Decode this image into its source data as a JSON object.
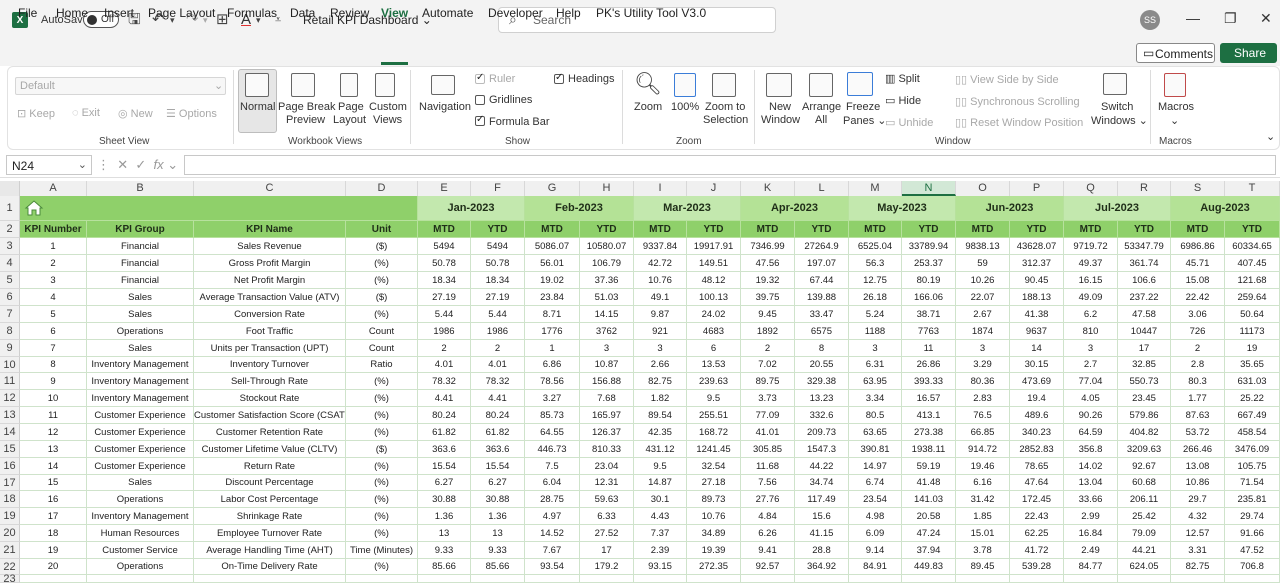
{
  "app": {
    "autosave_label": "AutoSave",
    "autosave_state": "Off",
    "doc_title": "Retail KPI Dashboard",
    "search_placeholder": "Search",
    "user_initials": "SS",
    "accent_color": "#1d6f42"
  },
  "menu": {
    "items": [
      "File",
      "Home",
      "Insert",
      "Page Layout",
      "Formulas",
      "Data",
      "Review",
      "View",
      "Automate",
      "Developer",
      "Help",
      "PK's Utility Tool V3.0"
    ],
    "active": "View",
    "comments_label": "Comments",
    "share_label": "Share"
  },
  "ribbon": {
    "sheet_view": {
      "select_value": "Default",
      "keep": "Keep",
      "exit": "Exit",
      "new": "New",
      "options": "Options",
      "label": "Sheet View"
    },
    "workbook_views": {
      "normal": "Normal",
      "page_break_1": "Page Break",
      "page_break_2": "Preview",
      "page_layout_1": "Page",
      "page_layout_2": "Layout",
      "custom_1": "Custom",
      "custom_2": "Views",
      "label": "Workbook Views"
    },
    "show": {
      "navigation": "Navigation",
      "ruler": "Ruler",
      "gridlines": "Gridlines",
      "formula_bar": "Formula Bar",
      "headings": "Headings",
      "label": "Show"
    },
    "zoom": {
      "zoom": "Zoom",
      "hundred": "100%",
      "zoom_sel_1": "Zoom to",
      "zoom_sel_2": "Selection",
      "label": "Zoom"
    },
    "window": {
      "new_1": "New",
      "new_2": "Window",
      "arrange_1": "Arrange",
      "arrange_2": "All",
      "freeze_1": "Freeze",
      "freeze_2": "Panes",
      "split": "Split",
      "hide": "Hide",
      "unhide": "Unhide",
      "side_by_side": "View Side by Side",
      "sync_scroll": "Synchronous Scrolling",
      "reset_pos": "Reset Window Position",
      "switch_1": "Switch",
      "switch_2": "Windows",
      "label": "Window"
    },
    "macros": {
      "macros": "Macros",
      "label": "Macros"
    }
  },
  "formula_bar": {
    "name_box": "N24",
    "fx": "fx",
    "value": ""
  },
  "sheet": {
    "columns": [
      "A",
      "B",
      "C",
      "D",
      "E",
      "F",
      "G",
      "H",
      "I",
      "J",
      "K",
      "L",
      "M",
      "N",
      "O",
      "P",
      "Q",
      "R",
      "S",
      "T"
    ],
    "selected_column": "N",
    "row_numbers": [
      "1",
      "2",
      "3",
      "4",
      "5",
      "6",
      "7",
      "8",
      "9",
      "10",
      "11",
      "12",
      "13",
      "14",
      "15",
      "16",
      "17",
      "18",
      "19",
      "20",
      "21",
      "22",
      "23"
    ],
    "months": [
      "Jan-2023",
      "Feb-2023",
      "Mar-2023",
      "Apr-2023",
      "May-2023",
      "Jun-2023",
      "Jul-2023",
      "Aug-2023"
    ],
    "sub_headers": [
      "MTD",
      "YTD"
    ],
    "headers": [
      "KPI Number",
      "KPI Group",
      "KPI Name",
      "Unit"
    ],
    "rows": [
      [
        "1",
        "Financial",
        "Sales Revenue",
        "($)",
        "5494",
        "5494",
        "5086.07",
        "10580.07",
        "9337.84",
        "19917.91",
        "7346.99",
        "27264.9",
        "6525.04",
        "33789.94",
        "9838.13",
        "43628.07",
        "9719.72",
        "53347.79",
        "6986.86",
        "60334.65"
      ],
      [
        "2",
        "Financial",
        "Gross Profit Margin",
        "(%)",
        "50.78",
        "50.78",
        "56.01",
        "106.79",
        "42.72",
        "149.51",
        "47.56",
        "197.07",
        "56.3",
        "253.37",
        "59",
        "312.37",
        "49.37",
        "361.74",
        "45.71",
        "407.45"
      ],
      [
        "3",
        "Financial",
        "Net Profit Margin",
        "(%)",
        "18.34",
        "18.34",
        "19.02",
        "37.36",
        "10.76",
        "48.12",
        "19.32",
        "67.44",
        "12.75",
        "80.19",
        "10.26",
        "90.45",
        "16.15",
        "106.6",
        "15.08",
        "121.68"
      ],
      [
        "4",
        "Sales",
        "Average Transaction Value (ATV)",
        "($)",
        "27.19",
        "27.19",
        "23.84",
        "51.03",
        "49.1",
        "100.13",
        "39.75",
        "139.88",
        "26.18",
        "166.06",
        "22.07",
        "188.13",
        "49.09",
        "237.22",
        "22.42",
        "259.64"
      ],
      [
        "5",
        "Sales",
        "Conversion Rate",
        "(%)",
        "5.44",
        "5.44",
        "8.71",
        "14.15",
        "9.87",
        "24.02",
        "9.45",
        "33.47",
        "5.24",
        "38.71",
        "2.67",
        "41.38",
        "6.2",
        "47.58",
        "3.06",
        "50.64"
      ],
      [
        "6",
        "Operations",
        "Foot Traffic",
        "Count",
        "1986",
        "1986",
        "1776",
        "3762",
        "921",
        "4683",
        "1892",
        "6575",
        "1188",
        "7763",
        "1874",
        "9637",
        "810",
        "10447",
        "726",
        "11173"
      ],
      [
        "7",
        "Sales",
        "Units per Transaction (UPT)",
        "Count",
        "2",
        "2",
        "1",
        "3",
        "3",
        "6",
        "2",
        "8",
        "3",
        "11",
        "3",
        "14",
        "3",
        "17",
        "2",
        "19"
      ],
      [
        "8",
        "Inventory Management",
        "Inventory Turnover",
        "Ratio",
        "4.01",
        "4.01",
        "6.86",
        "10.87",
        "2.66",
        "13.53",
        "7.02",
        "20.55",
        "6.31",
        "26.86",
        "3.29",
        "30.15",
        "2.7",
        "32.85",
        "2.8",
        "35.65"
      ],
      [
        "9",
        "Inventory Management",
        "Sell-Through Rate",
        "(%)",
        "78.32",
        "78.32",
        "78.56",
        "156.88",
        "82.75",
        "239.63",
        "89.75",
        "329.38",
        "63.95",
        "393.33",
        "80.36",
        "473.69",
        "77.04",
        "550.73",
        "80.3",
        "631.03"
      ],
      [
        "10",
        "Inventory Management",
        "Stockout Rate",
        "(%)",
        "4.41",
        "4.41",
        "3.27",
        "7.68",
        "1.82",
        "9.5",
        "3.73",
        "13.23",
        "3.34",
        "16.57",
        "2.83",
        "19.4",
        "4.05",
        "23.45",
        "1.77",
        "25.22"
      ],
      [
        "11",
        "Customer Experience",
        "Customer Satisfaction Score (CSAT)",
        "(%)",
        "80.24",
        "80.24",
        "85.73",
        "165.97",
        "89.54",
        "255.51",
        "77.09",
        "332.6",
        "80.5",
        "413.1",
        "76.5",
        "489.6",
        "90.26",
        "579.86",
        "87.63",
        "667.49"
      ],
      [
        "12",
        "Customer Experience",
        "Customer Retention Rate",
        "(%)",
        "61.82",
        "61.82",
        "64.55",
        "126.37",
        "42.35",
        "168.72",
        "41.01",
        "209.73",
        "63.65",
        "273.38",
        "66.85",
        "340.23",
        "64.59",
        "404.82",
        "53.72",
        "458.54"
      ],
      [
        "13",
        "Customer Experience",
        "Customer Lifetime Value (CLTV)",
        "($)",
        "363.6",
        "363.6",
        "446.73",
        "810.33",
        "431.12",
        "1241.45",
        "305.85",
        "1547.3",
        "390.81",
        "1938.11",
        "914.72",
        "2852.83",
        "356.8",
        "3209.63",
        "266.46",
        "3476.09"
      ],
      [
        "14",
        "Customer Experience",
        "Return Rate",
        "(%)",
        "15.54",
        "15.54",
        "7.5",
        "23.04",
        "9.5",
        "32.54",
        "11.68",
        "44.22",
        "14.97",
        "59.19",
        "19.46",
        "78.65",
        "14.02",
        "92.67",
        "13.08",
        "105.75"
      ],
      [
        "15",
        "Sales",
        "Discount Percentage",
        "(%)",
        "6.27",
        "6.27",
        "6.04",
        "12.31",
        "14.87",
        "27.18",
        "7.56",
        "34.74",
        "6.74",
        "41.48",
        "6.16",
        "47.64",
        "13.04",
        "60.68",
        "10.86",
        "71.54"
      ],
      [
        "16",
        "Operations",
        "Labor Cost Percentage",
        "(%)",
        "30.88",
        "30.88",
        "28.75",
        "59.63",
        "30.1",
        "89.73",
        "27.76",
        "117.49",
        "23.54",
        "141.03",
        "31.42",
        "172.45",
        "33.66",
        "206.11",
        "29.7",
        "235.81"
      ],
      [
        "17",
        "Inventory Management",
        "Shrinkage Rate",
        "(%)",
        "1.36",
        "1.36",
        "4.97",
        "6.33",
        "4.43",
        "10.76",
        "4.84",
        "15.6",
        "4.98",
        "20.58",
        "1.85",
        "22.43",
        "2.99",
        "25.42",
        "4.32",
        "29.74"
      ],
      [
        "18",
        "Human Resources",
        "Employee Turnover Rate",
        "(%)",
        "13",
        "13",
        "14.52",
        "27.52",
        "7.37",
        "34.89",
        "6.26",
        "41.15",
        "6.09",
        "47.24",
        "15.01",
        "62.25",
        "16.84",
        "79.09",
        "12.57",
        "91.66"
      ],
      [
        "19",
        "Customer Service",
        "Average Handling Time (AHT)",
        "Time (Minutes)",
        "9.33",
        "9.33",
        "7.67",
        "17",
        "2.39",
        "19.39",
        "9.41",
        "28.8",
        "9.14",
        "37.94",
        "3.78",
        "41.72",
        "2.49",
        "44.21",
        "3.31",
        "47.52"
      ],
      [
        "20",
        "Operations",
        "On-Time Delivery Rate",
        "(%)",
        "85.66",
        "85.66",
        "93.54",
        "179.2",
        "93.15",
        "272.35",
        "92.57",
        "364.92",
        "84.91",
        "449.83",
        "89.45",
        "539.28",
        "84.77",
        "624.05",
        "82.75",
        "706.8"
      ]
    ]
  }
}
